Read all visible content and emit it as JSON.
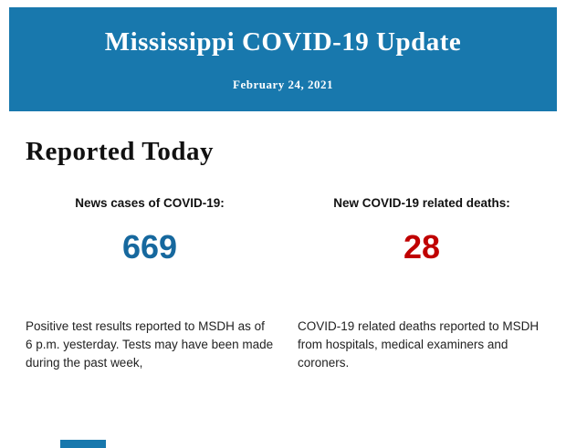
{
  "header": {
    "title": "Mississippi COVID-19 Update",
    "date": "February 24, 2021",
    "bg_color": "#1878ad"
  },
  "main": {
    "section_title": "Reported Today",
    "stats": [
      {
        "label": "News cases of COVID-19:",
        "value": "669",
        "value_color": "#16689e",
        "description": "Positive test results reported to MSDH as of 6 p.m. yesterday. Tests may have been made during the past week,"
      },
      {
        "label": "New COVID-19 related deaths:",
        "value": "28",
        "value_color": "#c00000",
        "description": "COVID-19 related deaths reported to MSDH from hospitals, medical examiners and coroners."
      }
    ]
  },
  "footer": {
    "partial_block_color": "#1878ad"
  }
}
